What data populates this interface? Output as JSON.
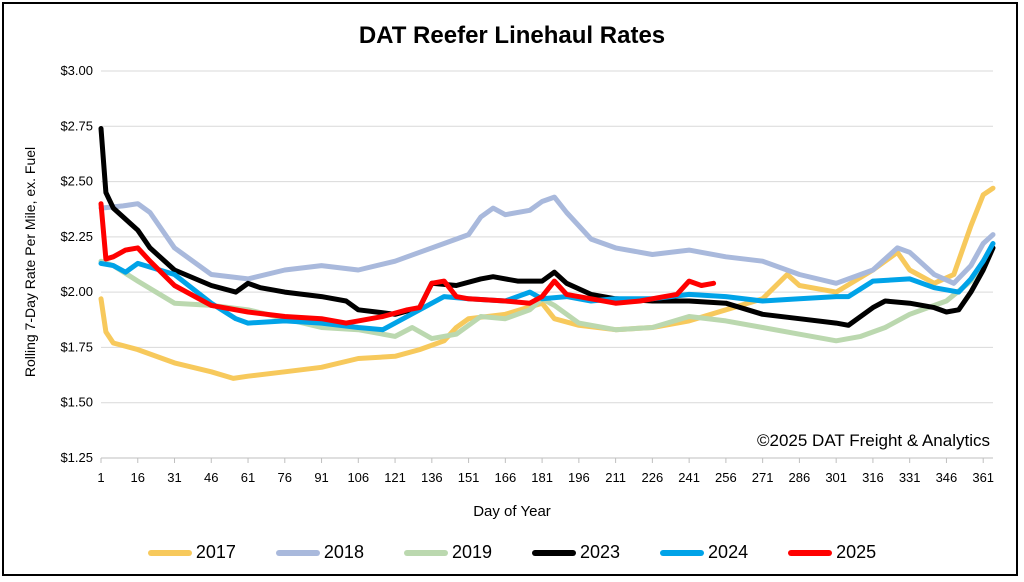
{
  "chart_data": {
    "type": "line",
    "title": "DAT Reefer Linehaul Rates",
    "xlabel": "Day of Year",
    "ylabel": "Rolling 7-Day Rate Per Mile, ex. Fuel",
    "annotation": "©2025 DAT Freight & Analytics",
    "xlim": [
      1,
      365
    ],
    "ylim": [
      1.25,
      3.0
    ],
    "x_ticks": [
      1,
      16,
      31,
      46,
      61,
      76,
      91,
      106,
      121,
      136,
      151,
      166,
      181,
      196,
      211,
      226,
      241,
      256,
      271,
      286,
      301,
      316,
      331,
      346,
      361
    ],
    "y_ticks": [
      {
        "value": 1.25,
        "label": "$1.25"
      },
      {
        "value": 1.5,
        "label": "$1.50"
      },
      {
        "value": 1.75,
        "label": "$1.75"
      },
      {
        "value": 2.0,
        "label": "$2.00"
      },
      {
        "value": 2.25,
        "label": "$2.25"
      },
      {
        "value": 2.5,
        "label": "$2.50"
      },
      {
        "value": 2.75,
        "label": "$2.75"
      },
      {
        "value": 3.0,
        "label": "$3.00"
      }
    ],
    "grid": true,
    "legend_position": "bottom",
    "series": [
      {
        "name": "2017",
        "color": "#F7C95C",
        "points": [
          [
            1,
            1.97
          ],
          [
            3,
            1.82
          ],
          [
            6,
            1.77
          ],
          [
            16,
            1.74
          ],
          [
            31,
            1.68
          ],
          [
            46,
            1.64
          ],
          [
            55,
            1.61
          ],
          [
            61,
            1.62
          ],
          [
            76,
            1.64
          ],
          [
            91,
            1.66
          ],
          [
            106,
            1.7
          ],
          [
            121,
            1.71
          ],
          [
            131,
            1.74
          ],
          [
            141,
            1.78
          ],
          [
            146,
            1.84
          ],
          [
            151,
            1.88
          ],
          [
            166,
            1.9
          ],
          [
            181,
            1.95
          ],
          [
            186,
            1.88
          ],
          [
            196,
            1.85
          ],
          [
            211,
            1.83
          ],
          [
            226,
            1.84
          ],
          [
            241,
            1.87
          ],
          [
            256,
            1.92
          ],
          [
            271,
            1.97
          ],
          [
            281,
            2.08
          ],
          [
            286,
            2.03
          ],
          [
            301,
            2.0
          ],
          [
            316,
            2.1
          ],
          [
            326,
            2.18
          ],
          [
            331,
            2.1
          ],
          [
            341,
            2.04
          ],
          [
            349,
            2.08
          ],
          [
            356,
            2.3
          ],
          [
            361,
            2.44
          ],
          [
            365,
            2.47
          ]
        ]
      },
      {
        "name": "2018",
        "color": "#A9B9DC",
        "points": [
          [
            1,
            2.38
          ],
          [
            10,
            2.39
          ],
          [
            16,
            2.4
          ],
          [
            21,
            2.36
          ],
          [
            31,
            2.2
          ],
          [
            46,
            2.08
          ],
          [
            61,
            2.06
          ],
          [
            76,
            2.1
          ],
          [
            91,
            2.12
          ],
          [
            106,
            2.1
          ],
          [
            121,
            2.14
          ],
          [
            131,
            2.18
          ],
          [
            141,
            2.22
          ],
          [
            151,
            2.26
          ],
          [
            156,
            2.34
          ],
          [
            161,
            2.38
          ],
          [
            166,
            2.35
          ],
          [
            176,
            2.37
          ],
          [
            181,
            2.41
          ],
          [
            186,
            2.43
          ],
          [
            191,
            2.36
          ],
          [
            201,
            2.24
          ],
          [
            211,
            2.2
          ],
          [
            226,
            2.17
          ],
          [
            241,
            2.19
          ],
          [
            256,
            2.16
          ],
          [
            271,
            2.14
          ],
          [
            286,
            2.08
          ],
          [
            301,
            2.04
          ],
          [
            316,
            2.1
          ],
          [
            326,
            2.2
          ],
          [
            331,
            2.18
          ],
          [
            341,
            2.08
          ],
          [
            349,
            2.04
          ],
          [
            356,
            2.12
          ],
          [
            361,
            2.22
          ],
          [
            365,
            2.26
          ]
        ]
      },
      {
        "name": "2019",
        "color": "#BBD8AF",
        "points": [
          [
            1,
            2.14
          ],
          [
            6,
            2.12
          ],
          [
            16,
            2.05
          ],
          [
            31,
            1.95
          ],
          [
            46,
            1.94
          ],
          [
            61,
            1.92
          ],
          [
            76,
            1.88
          ],
          [
            91,
            1.84
          ],
          [
            106,
            1.83
          ],
          [
            121,
            1.8
          ],
          [
            128,
            1.84
          ],
          [
            136,
            1.79
          ],
          [
            146,
            1.81
          ],
          [
            156,
            1.89
          ],
          [
            166,
            1.88
          ],
          [
            176,
            1.92
          ],
          [
            181,
            1.97
          ],
          [
            186,
            1.94
          ],
          [
            196,
            1.86
          ],
          [
            211,
            1.83
          ],
          [
            226,
            1.84
          ],
          [
            241,
            1.89
          ],
          [
            256,
            1.87
          ],
          [
            271,
            1.84
          ],
          [
            286,
            1.81
          ],
          [
            301,
            1.78
          ],
          [
            311,
            1.8
          ],
          [
            321,
            1.84
          ],
          [
            331,
            1.9
          ],
          [
            346,
            1.96
          ],
          [
            356,
            2.05
          ],
          [
            361,
            2.14
          ],
          [
            365,
            2.2
          ]
        ]
      },
      {
        "name": "2023",
        "color": "#000000",
        "points": [
          [
            1,
            2.74
          ],
          [
            3,
            2.45
          ],
          [
            6,
            2.38
          ],
          [
            16,
            2.28
          ],
          [
            21,
            2.2
          ],
          [
            31,
            2.1
          ],
          [
            46,
            2.03
          ],
          [
            56,
            2.0
          ],
          [
            61,
            2.04
          ],
          [
            66,
            2.02
          ],
          [
            76,
            2.0
          ],
          [
            91,
            1.98
          ],
          [
            101,
            1.96
          ],
          [
            106,
            1.92
          ],
          [
            121,
            1.9
          ],
          [
            131,
            1.93
          ],
          [
            136,
            2.04
          ],
          [
            146,
            2.03
          ],
          [
            156,
            2.06
          ],
          [
            161,
            2.07
          ],
          [
            171,
            2.05
          ],
          [
            181,
            2.05
          ],
          [
            186,
            2.09
          ],
          [
            191,
            2.04
          ],
          [
            201,
            1.99
          ],
          [
            211,
            1.97
          ],
          [
            226,
            1.96
          ],
          [
            241,
            1.96
          ],
          [
            256,
            1.95
          ],
          [
            271,
            1.9
          ],
          [
            286,
            1.88
          ],
          [
            301,
            1.86
          ],
          [
            306,
            1.85
          ],
          [
            316,
            1.93
          ],
          [
            321,
            1.96
          ],
          [
            331,
            1.95
          ],
          [
            341,
            1.93
          ],
          [
            346,
            1.91
          ],
          [
            351,
            1.92
          ],
          [
            356,
            2.0
          ],
          [
            361,
            2.1
          ],
          [
            365,
            2.2
          ]
        ]
      },
      {
        "name": "2024",
        "color": "#00A3E8",
        "points": [
          [
            1,
            2.13
          ],
          [
            6,
            2.12
          ],
          [
            11,
            2.09
          ],
          [
            16,
            2.13
          ],
          [
            31,
            2.08
          ],
          [
            46,
            1.95
          ],
          [
            56,
            1.88
          ],
          [
            61,
            1.86
          ],
          [
            76,
            1.87
          ],
          [
            91,
            1.86
          ],
          [
            106,
            1.84
          ],
          [
            116,
            1.83
          ],
          [
            121,
            1.86
          ],
          [
            131,
            1.92
          ],
          [
            141,
            1.98
          ],
          [
            151,
            1.97
          ],
          [
            166,
            1.96
          ],
          [
            176,
            2.0
          ],
          [
            181,
            1.97
          ],
          [
            191,
            1.98
          ],
          [
            201,
            1.96
          ],
          [
            211,
            1.97
          ],
          [
            226,
            1.97
          ],
          [
            241,
            1.99
          ],
          [
            256,
            1.98
          ],
          [
            271,
            1.96
          ],
          [
            286,
            1.97
          ],
          [
            301,
            1.98
          ],
          [
            306,
            1.98
          ],
          [
            316,
            2.05
          ],
          [
            331,
            2.06
          ],
          [
            341,
            2.02
          ],
          [
            351,
            2.0
          ],
          [
            356,
            2.06
          ],
          [
            361,
            2.14
          ],
          [
            365,
            2.22
          ]
        ]
      },
      {
        "name": "2025",
        "color": "#FF0000",
        "points": [
          [
            1,
            2.4
          ],
          [
            3,
            2.15
          ],
          [
            6,
            2.16
          ],
          [
            11,
            2.19
          ],
          [
            16,
            2.2
          ],
          [
            21,
            2.14
          ],
          [
            31,
            2.03
          ],
          [
            46,
            1.94
          ],
          [
            61,
            1.91
          ],
          [
            76,
            1.89
          ],
          [
            91,
            1.88
          ],
          [
            101,
            1.86
          ],
          [
            106,
            1.87
          ],
          [
            116,
            1.89
          ],
          [
            126,
            1.92
          ],
          [
            131,
            1.93
          ],
          [
            136,
            2.04
          ],
          [
            141,
            2.05
          ],
          [
            146,
            1.98
          ],
          [
            151,
            1.97
          ],
          [
            166,
            1.96
          ],
          [
            176,
            1.95
          ],
          [
            181,
            1.98
          ],
          [
            186,
            2.05
          ],
          [
            191,
            1.99
          ],
          [
            201,
            1.97
          ],
          [
            211,
            1.95
          ],
          [
            221,
            1.96
          ],
          [
            231,
            1.98
          ],
          [
            236,
            1.99
          ],
          [
            241,
            2.05
          ],
          [
            246,
            2.03
          ],
          [
            251,
            2.04
          ]
        ]
      }
    ]
  }
}
